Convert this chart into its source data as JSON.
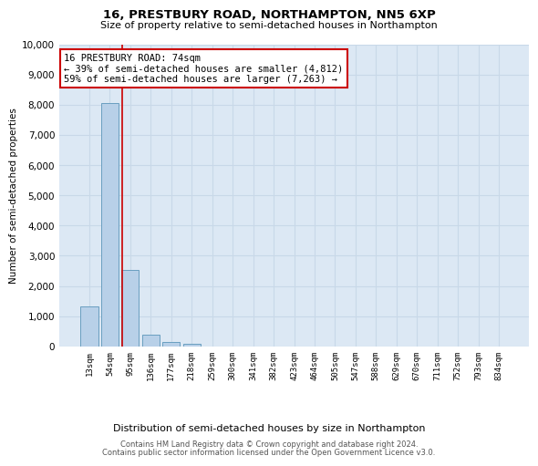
{
  "title": "16, PRESTBURY ROAD, NORTHAMPTON, NN5 6XP",
  "subtitle": "Size of property relative to semi-detached houses in Northampton",
  "xlabel_bottom": "Distribution of semi-detached houses by size in Northampton",
  "ylabel": "Number of semi-detached properties",
  "categories": [
    "13sqm",
    "54sqm",
    "95sqm",
    "136sqm",
    "177sqm",
    "218sqm",
    "259sqm",
    "300sqm",
    "341sqm",
    "382sqm",
    "423sqm",
    "464sqm",
    "505sqm",
    "547sqm",
    "588sqm",
    "629sqm",
    "670sqm",
    "711sqm",
    "752sqm",
    "793sqm",
    "834sqm"
  ],
  "values": [
    1320,
    8050,
    2520,
    390,
    135,
    100,
    0,
    0,
    0,
    0,
    0,
    0,
    0,
    0,
    0,
    0,
    0,
    0,
    0,
    0,
    0
  ],
  "bar_color": "#b8d0e8",
  "bar_edge_color": "#6a9fc0",
  "property_line_x": 1.62,
  "annotation_text": "16 PRESTBURY ROAD: 74sqm\n← 39% of semi-detached houses are smaller (4,812)\n59% of semi-detached houses are larger (7,263) →",
  "annotation_box_color": "#ffffff",
  "annotation_box_edge_color": "#cc0000",
  "vline_color": "#cc0000",
  "ylim": [
    0,
    10000
  ],
  "yticks": [
    0,
    1000,
    2000,
    3000,
    4000,
    5000,
    6000,
    7000,
    8000,
    9000,
    10000
  ],
  "grid_color": "#c8d8e8",
  "bg_color": "#dce8f4",
  "footer_line1": "Contains HM Land Registry data © Crown copyright and database right 2024.",
  "footer_line2": "Contains public sector information licensed under the Open Government Licence v3.0."
}
